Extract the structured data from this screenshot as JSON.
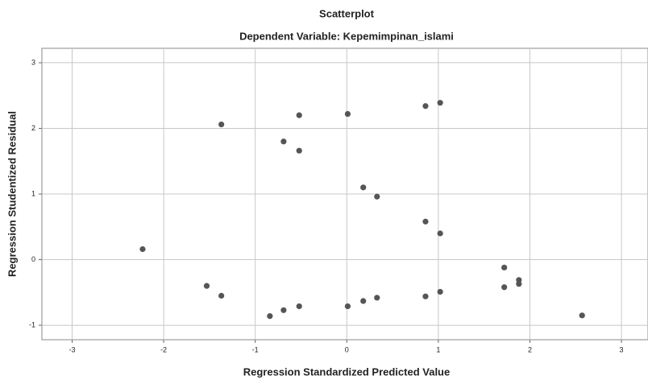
{
  "chart_data": {
    "type": "scatter",
    "title": "Scatterplot",
    "subtitle": "Dependent Variable: Kepemimpinan_islami",
    "x_label": "Regression Standardized Predicted Value",
    "y_label": "Regression Studentized Residual",
    "color": "#555555",
    "grid": true,
    "xlim": [
      -3.33,
      3.29
    ],
    "ylim": [
      -1.22,
      3.22
    ],
    "xticks": [
      -3,
      -2,
      -1,
      0,
      1,
      2,
      3
    ],
    "yticks": [
      -1,
      0,
      1,
      2,
      3
    ],
    "x": [
      -2.23,
      -1.53,
      -1.37,
      -1.37,
      -0.84,
      -0.69,
      -0.69,
      -0.52,
      -0.52,
      -0.52,
      0.01,
      0.01,
      0.18,
      0.18,
      0.33,
      0.33,
      0.86,
      0.86,
      0.86,
      1.02,
      1.02,
      1.02,
      1.72,
      1.72,
      1.88,
      1.88,
      2.57
    ],
    "values": [
      0.16,
      -0.4,
      2.06,
      -0.55,
      -0.86,
      1.8,
      -0.77,
      2.2,
      1.66,
      -0.71,
      2.22,
      -0.71,
      1.1,
      -0.63,
      0.96,
      -0.58,
      2.34,
      0.58,
      -0.56,
      2.39,
      0.4,
      -0.49,
      -0.12,
      -0.42,
      -0.31,
      -0.37,
      -0.85
    ]
  }
}
